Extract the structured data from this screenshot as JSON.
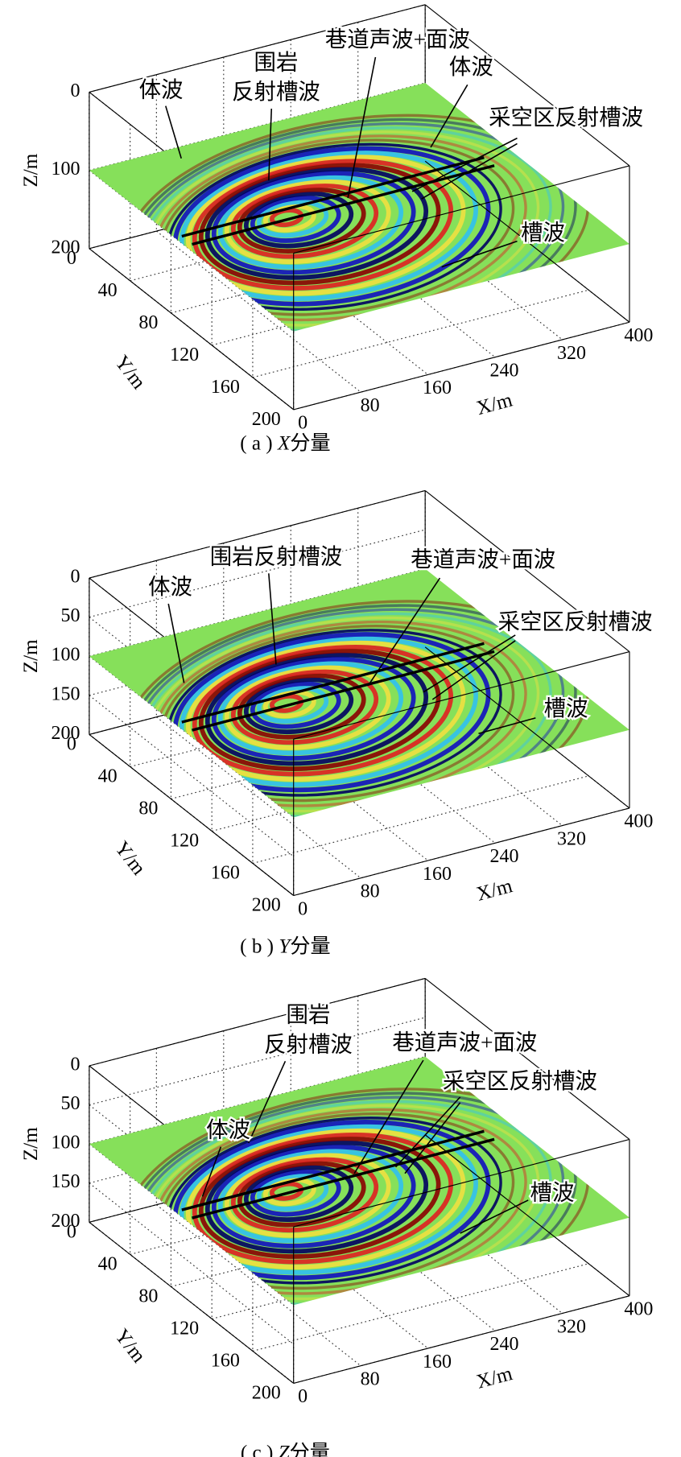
{
  "panels": [
    {
      "caption": {
        "label": "( a ) ",
        "component": "X",
        "suffix": "分量"
      },
      "axes": {
        "z_label": "Z/m",
        "y_label": "Y/m",
        "x_label": "X/m",
        "z_ticks": [
          0,
          100,
          200
        ],
        "y_ticks": [
          0,
          40,
          80,
          120,
          160,
          200
        ],
        "x_ticks": [
          0,
          80,
          160,
          240,
          320,
          400
        ]
      },
      "annotations": [
        "体波",
        "围岩",
        "反射槽波",
        "巷道声波+面波",
        "体波",
        "采空区反射槽波",
        "槽波"
      ]
    },
    {
      "caption": {
        "label": "( b ) ",
        "component": "Y",
        "suffix": "分量"
      },
      "axes": {
        "z_label": "Z/m",
        "y_label": "Y/m",
        "x_label": "X/m",
        "z_ticks": [
          0,
          50,
          100,
          150,
          200
        ],
        "y_ticks": [
          0,
          40,
          80,
          120,
          160,
          200
        ],
        "x_ticks": [
          0,
          80,
          160,
          240,
          320,
          400
        ]
      },
      "annotations": [
        "体波",
        "围岩反射槽波",
        "巷道声波+面波",
        "采空区反射槽波",
        "槽波"
      ]
    },
    {
      "caption": {
        "label": "( c ) ",
        "component": "Z",
        "suffix": "分量"
      },
      "axes": {
        "z_label": "Z/m",
        "y_label": "Y/m",
        "x_label": "X/m",
        "z_ticks": [
          0,
          50,
          100,
          150,
          200
        ],
        "y_ticks": [
          0,
          40,
          80,
          120,
          160,
          200
        ],
        "x_ticks": [
          0,
          80,
          160,
          240,
          320,
          400
        ]
      },
      "annotations": [
        "围岩",
        "反射槽波",
        "巷道声波+面波",
        "采空区反射槽波",
        "体波",
        "槽波"
      ]
    }
  ]
}
